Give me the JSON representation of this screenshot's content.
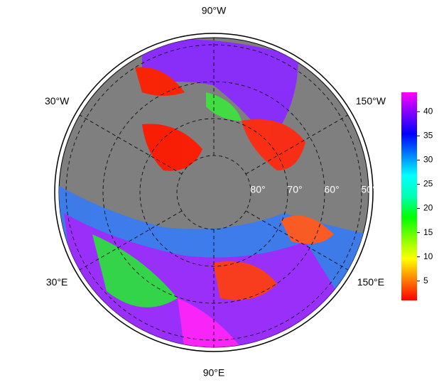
{
  "chart_data": {
    "type": "polar-map",
    "lon_ticks": [
      {
        "value": -90,
        "label": "90°W"
      },
      {
        "value": -30,
        "label": "30°W"
      },
      {
        "value": -150,
        "label": "150°W"
      },
      {
        "value": 30,
        "label": "30°E"
      },
      {
        "value": 90,
        "label": "90°E"
      },
      {
        "value": 150,
        "label": "150°E"
      }
    ],
    "lat_ticks": [
      {
        "value": 80,
        "label": "80°"
      },
      {
        "value": 70,
        "label": "70°"
      },
      {
        "value": 60,
        "label": "60°"
      },
      {
        "value": 50,
        "label": "50°"
      }
    ],
    "colorbar": {
      "lim": [
        1,
        44
      ],
      "ticks": [
        5,
        10,
        15,
        20,
        25,
        30,
        35,
        40
      ],
      "colormap": [
        "#ff0000",
        "#ff8000",
        "#ffff00",
        "#80ff00",
        "#00ff00",
        "#00ffb0",
        "#00ffff",
        "#0080ff",
        "#0000ff",
        "#8000ff",
        "#ff00ff"
      ]
    }
  }
}
